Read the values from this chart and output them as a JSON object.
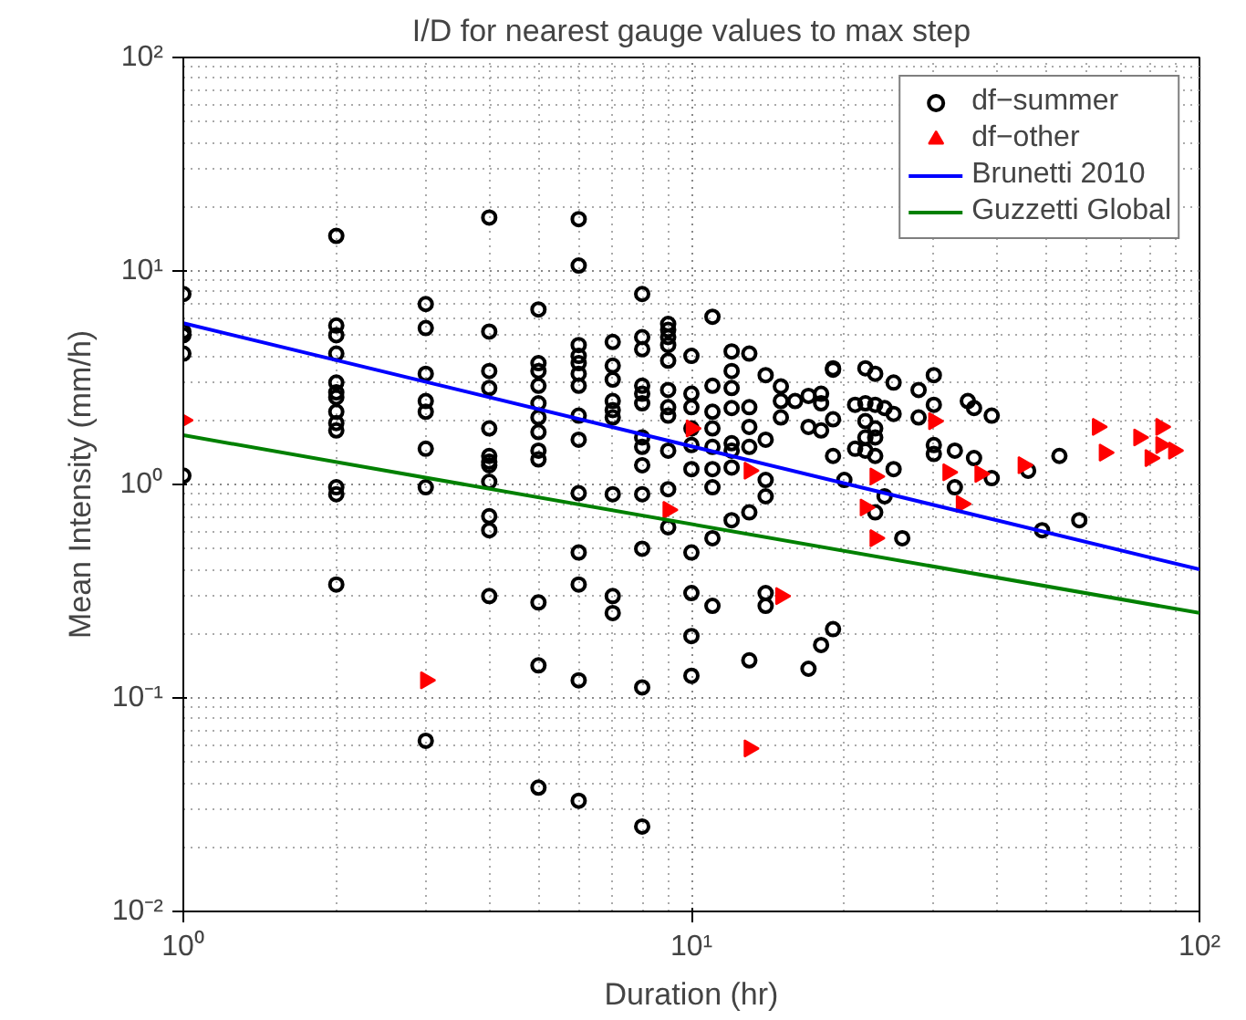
{
  "chart_data": {
    "type": "scatter",
    "title": "I/D for nearest gauge values to max step",
    "xlabel": "Duration (hr)",
    "ylabel": "Mean Intensity (mm/h)",
    "log": "xy",
    "grid": true,
    "legend": "top right",
    "xlim": [
      1,
      100
    ],
    "ylim": [
      0.01,
      100
    ],
    "xticks": [
      {
        "value": 1,
        "label": "10⁰"
      },
      {
        "value": 10,
        "label": "10¹"
      },
      {
        "value": 100,
        "label": "10²"
      }
    ],
    "yticks": [
      {
        "value": 0.01,
        "label": "10⁻²"
      },
      {
        "value": 0.1,
        "label": "10⁻¹"
      },
      {
        "value": 1,
        "label": "10⁰"
      },
      {
        "value": 10,
        "label": "10¹"
      },
      {
        "value": 100,
        "label": "10²"
      }
    ],
    "series": [
      {
        "name": "df−summer",
        "marker": "circle",
        "color": "#000000",
        "x": [
          1,
          1,
          1,
          1,
          1,
          2,
          2,
          2,
          2,
          2,
          2,
          2,
          2,
          2,
          2,
          2,
          2,
          2,
          3,
          3,
          3,
          3,
          3,
          3,
          3,
          3,
          4,
          4,
          4,
          4,
          4,
          4,
          4,
          4,
          4,
          4,
          4,
          4,
          5,
          5,
          5,
          5,
          5,
          5,
          5,
          5,
          5,
          5,
          5,
          5,
          6,
          6,
          6,
          6,
          6,
          6,
          6,
          6,
          6,
          6,
          6,
          6,
          6,
          6,
          7,
          7,
          7,
          7,
          7,
          7,
          7,
          7,
          7,
          8,
          8,
          8,
          8,
          8,
          8,
          8,
          8,
          8,
          8,
          8,
          8,
          8,
          9,
          9,
          9,
          9,
          9,
          9,
          9,
          9,
          9,
          9,
          9,
          10,
          10,
          10,
          10,
          10,
          10,
          10,
          10,
          10,
          10,
          11,
          11,
          11,
          11,
          11,
          11,
          11,
          11,
          11,
          12,
          12,
          12,
          12,
          12,
          12,
          12,
          12,
          13,
          13,
          13,
          13,
          13,
          13,
          14,
          14,
          14,
          14,
          14,
          14,
          15,
          15,
          15,
          16,
          17,
          17,
          17,
          18,
          18,
          18,
          18,
          19,
          19,
          19,
          19,
          19,
          20,
          21,
          21,
          22,
          22,
          22,
          22,
          22,
          23,
          23,
          23,
          23,
          23,
          23,
          24,
          24,
          25,
          25,
          25,
          26,
          28,
          28,
          30,
          30,
          30,
          30,
          33,
          33,
          35,
          36,
          36,
          39,
          39,
          46,
          49,
          53,
          58
        ],
        "values": [
          7.8,
          5.2,
          5.0,
          4.1,
          1.1,
          14.6,
          5.55,
          5.0,
          4.1,
          3.0,
          2.7,
          2.56,
          2.19,
          1.94,
          1.79,
          0.97,
          0.9,
          0.34,
          7.0,
          5.4,
          3.3,
          2.46,
          2.19,
          1.47,
          0.97,
          0.063,
          17.8,
          5.2,
          3.4,
          2.83,
          1.83,
          1.36,
          1.28,
          1.23,
          1.03,
          0.71,
          0.61,
          0.3,
          6.6,
          3.7,
          3.4,
          2.9,
          2.4,
          2.06,
          1.76,
          1.44,
          1.31,
          0.28,
          0.142,
          0.038,
          17.5,
          10.6,
          4.5,
          4.0,
          3.7,
          3.3,
          2.9,
          2.1,
          1.62,
          0.91,
          0.48,
          0.34,
          0.121,
          0.033,
          4.65,
          3.6,
          3.1,
          2.46,
          2.23,
          2.06,
          0.9,
          0.3,
          0.25,
          7.8,
          4.9,
          4.3,
          2.9,
          2.66,
          2.4,
          1.66,
          1.5,
          1.23,
          0.9,
          0.5,
          0.112,
          0.025,
          5.65,
          5.3,
          4.9,
          4.5,
          3.8,
          2.77,
          2.3,
          2.1,
          1.44,
          0.95,
          0.63,
          4.0,
          2.66,
          2.3,
          1.83,
          1.53,
          1.18,
          0.48,
          0.31,
          0.195,
          0.127,
          6.1,
          2.9,
          2.19,
          1.83,
          1.5,
          1.18,
          0.97,
          0.56,
          0.27,
          4.2,
          3.4,
          2.83,
          2.28,
          1.56,
          1.44,
          1.2,
          0.68,
          4.1,
          2.3,
          1.86,
          1.5,
          0.74,
          0.15,
          3.25,
          1.62,
          1.05,
          0.88,
          0.31,
          0.27,
          2.88,
          2.46,
          2.06,
          2.46,
          2.6,
          1.86,
          0.137,
          2.66,
          2.4,
          1.79,
          0.177,
          2.02,
          1.36,
          3.45,
          3.5,
          0.21,
          1.05,
          2.36,
          1.47,
          3.5,
          2.4,
          1.98,
          1.66,
          1.44,
          3.3,
          2.36,
          1.83,
          1.66,
          1.36,
          0.74,
          2.28,
          0.88,
          3.0,
          2.14,
          1.18,
          0.56,
          2.77,
          2.06,
          3.25,
          2.36,
          1.53,
          1.39,
          1.44,
          0.97,
          2.46,
          2.28,
          1.33,
          2.1,
          1.07,
          1.16,
          0.61,
          1.36,
          0.68
        ]
      },
      {
        "name": "df−other",
        "marker": "triangle",
        "color": "#ff0000",
        "x": [
          1,
          3,
          9,
          10,
          13,
          15,
          13,
          23,
          22,
          23,
          30,
          32,
          37,
          34,
          45,
          63,
          65,
          76,
          84,
          80,
          84,
          89
        ],
        "values": [
          2.0,
          0.121,
          0.76,
          1.83,
          1.16,
          0.3,
          0.058,
          1.09,
          0.78,
          0.56,
          1.98,
          1.14,
          1.12,
          0.81,
          1.23,
          1.86,
          1.41,
          1.66,
          1.86,
          1.33,
          1.53,
          1.44
        ]
      },
      {
        "name": "Brunetti 2010",
        "type": "line",
        "color": "#0000ff",
        "x": [
          1,
          100
        ],
        "values": [
          5.7,
          0.4
        ]
      },
      {
        "name": "Guzzetti Global",
        "type": "line",
        "color": "#008000",
        "x": [
          1,
          100
        ],
        "values": [
          1.7,
          0.25
        ]
      }
    ]
  }
}
